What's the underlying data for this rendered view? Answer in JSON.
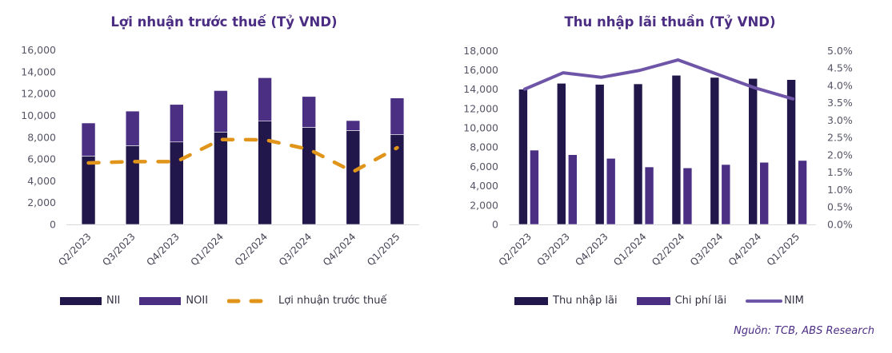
{
  "chart_data": [
    {
      "type": "bar",
      "stacked": true,
      "title": "Lợi nhuận trước thuế (Tỷ VND)",
      "categories": [
        "Q2/2023",
        "Q3/2023",
        "Q4/2023",
        "Q1/2024",
        "Q2/2024",
        "Q3/2024",
        "Q4/2024",
        "Q1/2025"
      ],
      "series": [
        {
          "name": "NII",
          "kind": "bar",
          "color": "#22174a",
          "values": [
            6270,
            7220,
            7560,
            8470,
            9470,
            8900,
            8610,
            8250
          ]
        },
        {
          "name": "NOII",
          "kind": "bar",
          "color": "#4a2f82",
          "values": [
            3030,
            3170,
            3440,
            3800,
            3980,
            2830,
            910,
            3340
          ]
        },
        {
          "name": "Lợi nhuận trước thuế",
          "kind": "line-dashed",
          "color": "#e0951a",
          "values": [
            5640,
            5760,
            5760,
            7780,
            7760,
            6880,
            4830,
            7030
          ]
        }
      ],
      "yticks": [
        "0",
        "2,000",
        "4,000",
        "6,000",
        "8,000",
        "10,000",
        "12,000",
        "14,000",
        "16,000"
      ],
      "ylim": [
        0,
        16000
      ],
      "xlabel": "",
      "ylabel": "",
      "grid": false,
      "legend": "bottom"
    },
    {
      "type": "bar",
      "title": "Thu nhập lãi thuần (Tỷ VND)",
      "categories": [
        "Q2/2023",
        "Q3/2023",
        "Q4/2023",
        "Q1/2024",
        "Q2/2024",
        "Q3/2024",
        "Q4/2024",
        "Q1/2025"
      ],
      "series": [
        {
          "name": "Thu nhập lãi",
          "kind": "bar",
          "color": "#22174a",
          "values": [
            14000,
            14610,
            14500,
            14550,
            15440,
            15220,
            15110,
            14990
          ]
        },
        {
          "name": "Chi phí lãi",
          "kind": "bar",
          "color": "#4a2f82",
          "values": [
            7690,
            7220,
            6840,
            5950,
            5850,
            6200,
            6430,
            6620
          ]
        },
        {
          "name": "NIM",
          "kind": "line",
          "axis": "secondary",
          "color": "#6f55a8",
          "values": [
            3.89,
            4.36,
            4.23,
            4.43,
            4.73,
            4.33,
            3.93,
            3.61
          ]
        }
      ],
      "yticks": [
        "0",
        "2,000",
        "4,000",
        "6,000",
        "8,000",
        "10,000",
        "12,000",
        "14,000",
        "16,000",
        "18,000"
      ],
      "ylim": [
        0,
        18000
      ],
      "y2ticks": [
        "0.0%",
        "0.5%",
        "1.0%",
        "1.5%",
        "2.0%",
        "2.5%",
        "3.0%",
        "3.5%",
        "4.0%",
        "4.5%",
        "5.0%"
      ],
      "y2lim": [
        0,
        5.0
      ],
      "xlabel": "",
      "ylabel": "",
      "grid": false,
      "legend": "bottom"
    }
  ],
  "source": "Nguồn: TCB, ABS Research"
}
